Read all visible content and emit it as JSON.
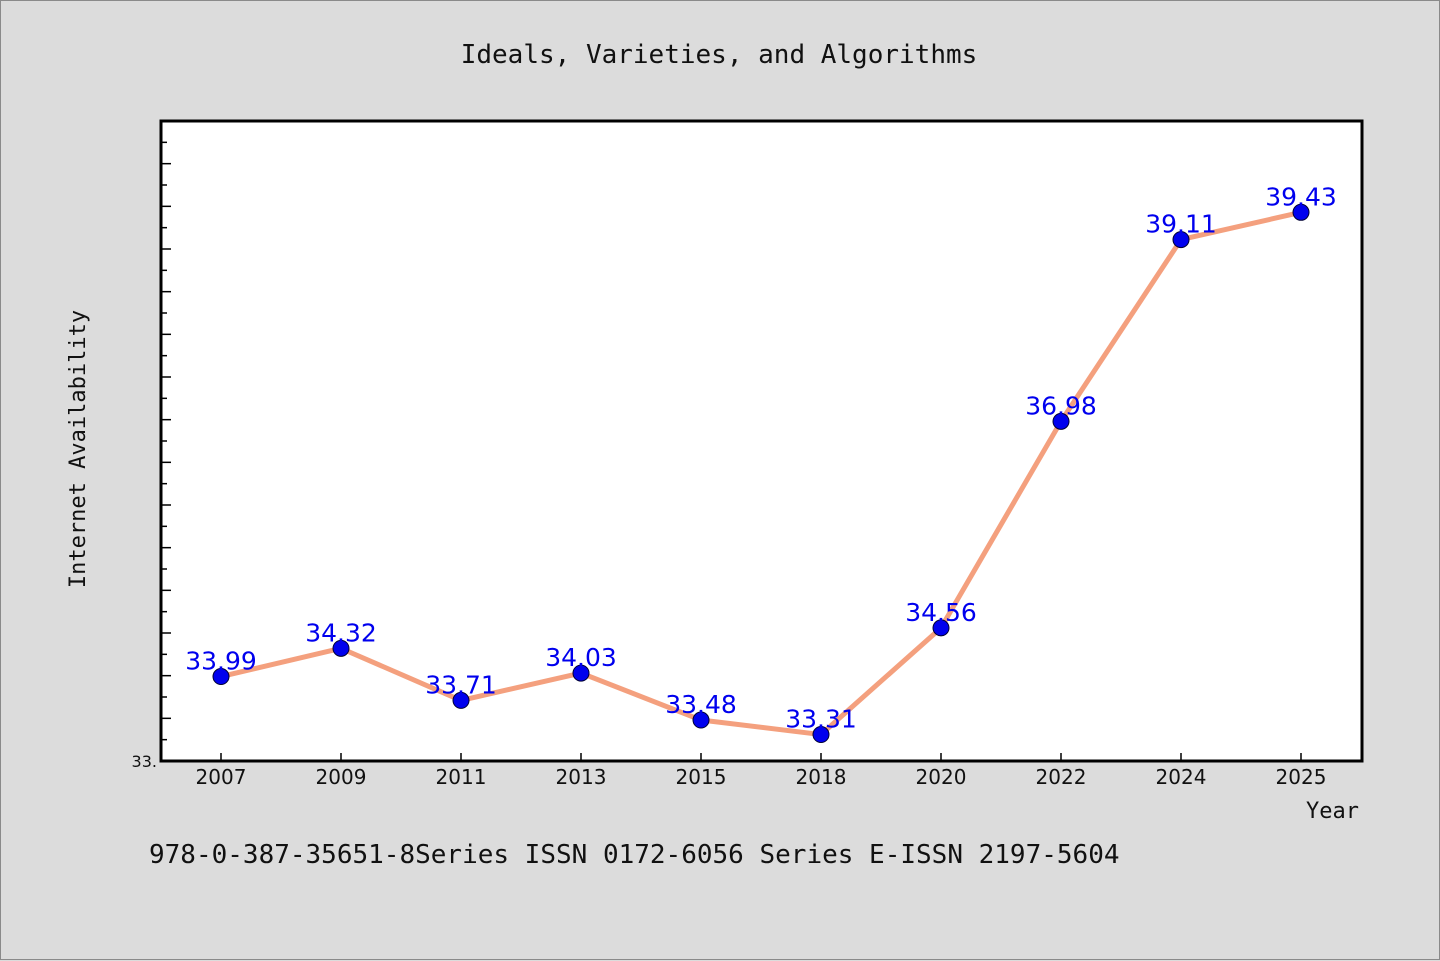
{
  "chart_data": {
    "type": "line",
    "title": "Ideals, Varieties, and Algorithms",
    "xlabel": "Year",
    "ylabel": "Internet Availability",
    "categories": [
      "2007",
      "2009",
      "2011",
      "2013",
      "2015",
      "2018",
      "2020",
      "2022",
      "2024",
      "2025"
    ],
    "series": [
      {
        "values": [
          33.99,
          34.32,
          33.71,
          34.03,
          33.48,
          33.31,
          34.56,
          36.98,
          39.11,
          39.43
        ],
        "labels": [
          "33.99",
          "34.32",
          "33.71",
          "34.03",
          "33.48",
          "33.31",
          "34.56",
          "36.98",
          "39.11",
          "39.43"
        ],
        "line_color": "#f4a07e",
        "marker_color": "#0000ee"
      }
    ],
    "ylim": [
      33.0,
      40.5
    ],
    "y_min_tick_label": "33.",
    "grid": false,
    "footer": "978-0-387-35651-8Series ISSN 0172-6056 Series E-ISSN 2197-5604"
  }
}
